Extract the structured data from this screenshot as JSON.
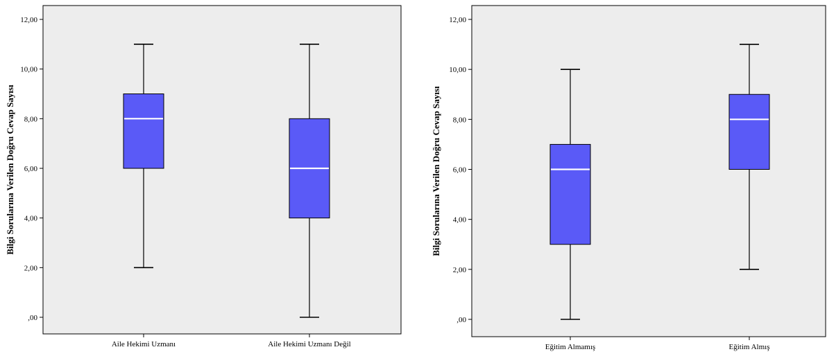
{
  "chart_data": [
    {
      "type": "boxplot",
      "ylabel": "Bilgi Sorularına Verilen Doğru Cevap Sayısı",
      "ylim": [
        0,
        12
      ],
      "yticks": [
        " ,00",
        "2,00",
        "4,00",
        "6,00",
        "8,00",
        "10,00",
        "12,00"
      ],
      "categories": [
        "Aile Hekimi Uzmanı",
        "Aile Hekimi Uzmanı Değil"
      ],
      "boxes": [
        {
          "min": 2,
          "q1": 6,
          "median": 8,
          "q3": 9,
          "max": 11
        },
        {
          "min": 0,
          "q1": 4,
          "median": 6,
          "q3": 8,
          "max": 11
        }
      ],
      "grid": false,
      "colors": {
        "box": "#5a5af7",
        "median": "#ffffff",
        "plot_bg": "#ededed"
      }
    },
    {
      "type": "boxplot",
      "ylabel": "Bilgi Sorularına Verilen Doğru Cevap Sayısı",
      "ylim": [
        0,
        12
      ],
      "yticks": [
        ",00",
        "2,00",
        "4,00",
        "6,00",
        "8,00",
        "10,00",
        "12,00"
      ],
      "categories": [
        "Eğitim Almamış",
        "Eğitim Almış"
      ],
      "boxes": [
        {
          "min": 0,
          "q1": 3,
          "median": 6,
          "q3": 7,
          "max": 10
        },
        {
          "min": 2,
          "q1": 6,
          "median": 8,
          "q3": 9,
          "max": 11
        }
      ],
      "grid": false,
      "colors": {
        "box": "#5a5af7",
        "median": "#ffffff",
        "plot_bg": "#ededed"
      }
    }
  ]
}
